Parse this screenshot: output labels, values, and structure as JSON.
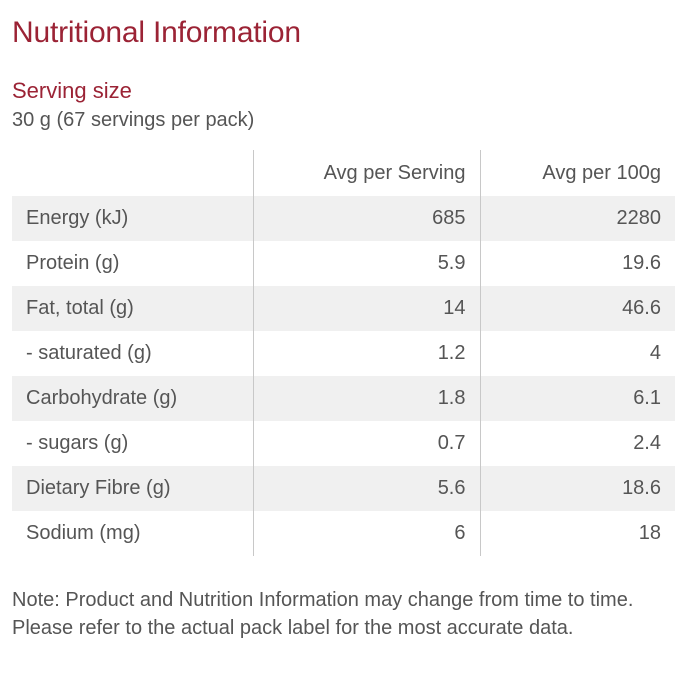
{
  "title": "Nutritional Information",
  "serving": {
    "heading": "Serving size",
    "value": "30 g (67 servings per pack)"
  },
  "table": {
    "headers": [
      "",
      "Avg per Serving",
      "Avg per 100g"
    ],
    "rows": [
      [
        "Energy (kJ)",
        "685",
        "2280"
      ],
      [
        "Protein (g)",
        "5.9",
        "19.6"
      ],
      [
        "Fat, total (g)",
        "14",
        "46.6"
      ],
      [
        "- saturated (g)",
        "1.2",
        "4"
      ],
      [
        "Carbohydrate (g)",
        "1.8",
        "6.1"
      ],
      [
        "- sugars (g)",
        "0.7",
        "2.4"
      ],
      [
        "Dietary Fibre (g)",
        "5.6",
        "18.6"
      ],
      [
        "Sodium (mg)",
        "6",
        "18"
      ]
    ]
  },
  "note": "Note: Product and Nutrition Information may change from time to time. Please refer to the actual pack label for the most accurate data.",
  "colors": {
    "heading": "#9b2335",
    "text": "#555555",
    "row_shade": "#f0f0f0",
    "divider": "#c8c8c8"
  }
}
